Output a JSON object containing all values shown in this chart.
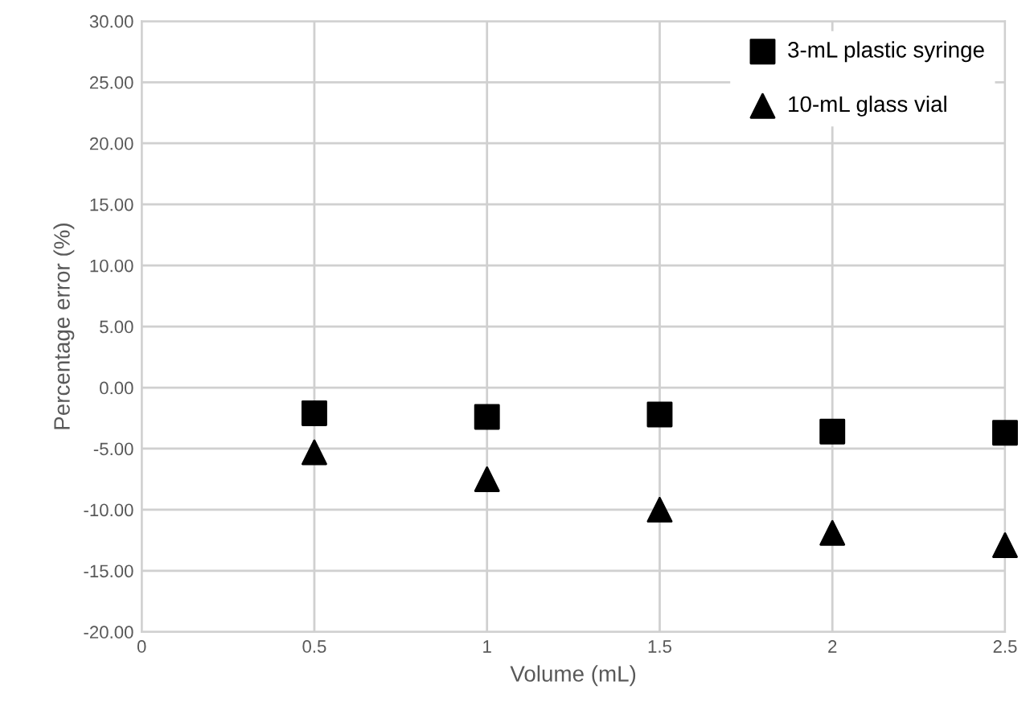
{
  "chart_data": {
    "type": "scatter",
    "xlabel": "Volume (mL)",
    "ylabel": "Percentage error (%)",
    "x": [
      0.5,
      1,
      1.5,
      2,
      2.5
    ],
    "series": [
      {
        "name": "3-mL plastic syringe",
        "color": "#000000",
        "marker": "square",
        "values": [
          -2.1,
          -2.4,
          -2.2,
          -3.6,
          -3.7
        ]
      },
      {
        "name": "10-mL glass vial",
        "color": "#000000",
        "marker": "triangle",
        "values": [
          -5.3,
          -7.5,
          -10.0,
          -11.9,
          -12.9
        ]
      }
    ],
    "xlim": [
      0,
      2.5
    ],
    "xticks": [
      0,
      0.5,
      1,
      1.5,
      2,
      2.5
    ],
    "ylim": [
      -20,
      30
    ],
    "yticks": [
      {
        "value": -20,
        "label": "-20.00"
      },
      {
        "value": -15,
        "label": "-15.00"
      },
      {
        "value": -10,
        "label": "-10.00"
      },
      {
        "value": -5,
        "label": "-5.00"
      },
      {
        "value": 0,
        "label": "0.00"
      },
      {
        "value": 5,
        "label": "5.00"
      },
      {
        "value": 10,
        "label": "10.00"
      },
      {
        "value": 15,
        "label": "15.00"
      },
      {
        "value": 20,
        "label": "20.00"
      },
      {
        "value": 25,
        "label": "25.00"
      },
      {
        "value": 30,
        "label": "30.00"
      }
    ],
    "grid": true,
    "legend": "top right"
  }
}
